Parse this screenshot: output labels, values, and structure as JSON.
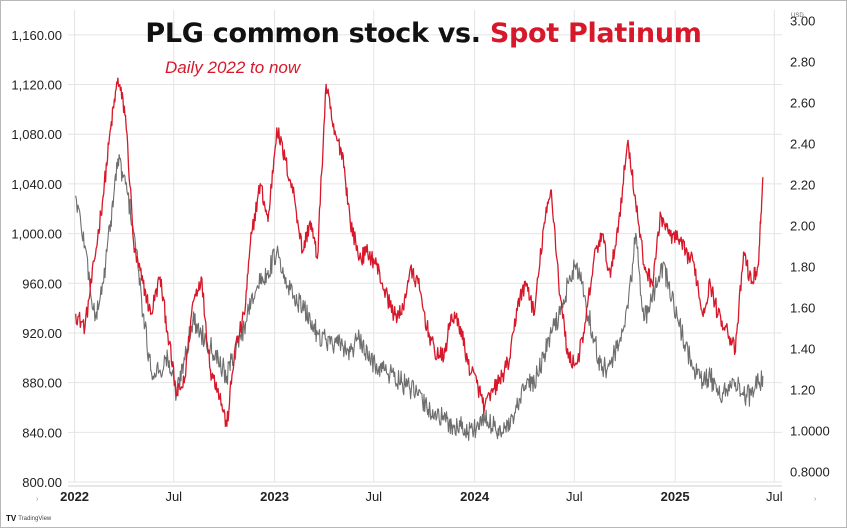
{
  "header": {
    "title_part1": "PLG common stock vs. ",
    "title_part2": "Spot Platinum",
    "subtitle": "Daily 2022 to now",
    "currency_label": "USD",
    "brand": "TradingView"
  },
  "colors": {
    "platinum": "#d7182a",
    "plg": "#6e6e6e",
    "title": "#111111",
    "grid": "#e4e4e4"
  },
  "chart_data": {
    "type": "line",
    "x_ticks": [
      {
        "label": "2022",
        "bold": true
      },
      {
        "label": "Jul",
        "bold": false
      },
      {
        "label": "2023",
        "bold": true
      },
      {
        "label": "Jul",
        "bold": false
      },
      {
        "label": "2024",
        "bold": true
      },
      {
        "label": "Jul",
        "bold": false
      },
      {
        "label": "2025",
        "bold": true
      },
      {
        "label": "Jul",
        "bold": false
      }
    ],
    "y_left": {
      "ylim": [
        800,
        1180
      ],
      "ticks": [
        "800.00",
        "840.00",
        "880.00",
        "920.00",
        "960.00",
        "1,000.00",
        "1,040.00",
        "1,080.00",
        "1,120.00",
        "1,160.00"
      ],
      "tick_values": [
        800,
        840,
        880,
        920,
        960,
        1000,
        1040,
        1080,
        1120,
        1160
      ]
    },
    "y_right": {
      "ylim": [
        0.75,
        3.05
      ],
      "ticks": [
        "0.8000",
        "1.0000",
        "1.20",
        "1.40",
        "1.60",
        "1.80",
        "2.00",
        "2.20",
        "2.40",
        "2.60",
        "2.80",
        "3.00"
      ],
      "tick_values": [
        0.8,
        1.0,
        1.2,
        1.4,
        1.6,
        1.8,
        2.0,
        2.2,
        2.4,
        2.6,
        2.8,
        3.0
      ]
    },
    "grid": true,
    "series": [
      {
        "axis": "left",
        "color": "#d7182a",
        "x": [
          "2022-01-03",
          "2022-01-20",
          "2022-02-07",
          "2022-02-22",
          "2022-03-08",
          "2022-03-21",
          "2022-04-04",
          "2022-04-20",
          "2022-05-06",
          "2022-05-20",
          "2022-06-06",
          "2022-06-20",
          "2022-07-06",
          "2022-07-20",
          "2022-08-05",
          "2022-08-20",
          "2022-09-06",
          "2022-09-20",
          "2022-10-06",
          "2022-10-20",
          "2022-11-07",
          "2022-11-20",
          "2022-12-06",
          "2022-12-20",
          "2023-01-05",
          "2023-01-20",
          "2023-02-06",
          "2023-02-21",
          "2023-03-07",
          "2023-03-20",
          "2023-04-05",
          "2023-04-20",
          "2023-05-05",
          "2023-05-19",
          "2023-06-05",
          "2023-06-20",
          "2023-07-06",
          "2023-07-20",
          "2023-08-07",
          "2023-08-21",
          "2023-09-05",
          "2023-09-20",
          "2023-10-06",
          "2023-10-20",
          "2023-11-06",
          "2023-11-20",
          "2023-12-06",
          "2023-12-20",
          "2024-01-05",
          "2024-01-19",
          "2024-02-06",
          "2024-02-20",
          "2024-03-06",
          "2024-03-20",
          "2024-04-05",
          "2024-04-19",
          "2024-05-06",
          "2024-05-20",
          "2024-06-05",
          "2024-06-20",
          "2024-07-05",
          "2024-07-19",
          "2024-08-06",
          "2024-08-20",
          "2024-09-05",
          "2024-09-20",
          "2024-10-07",
          "2024-10-21",
          "2024-11-05",
          "2024-11-20",
          "2024-12-06",
          "2024-12-20",
          "2025-01-06",
          "2025-01-20",
          "2025-02-05",
          "2025-02-20",
          "2025-03-06",
          "2025-03-20",
          "2025-04-04",
          "2025-04-21",
          "2025-05-06",
          "2025-05-20",
          "2025-06-02",
          "2025-06-10"
        ],
        "values": [
          935,
          925,
          980,
          1030,
          1085,
          1125,
          1095,
          985,
          960,
          935,
          965,
          920,
          870,
          880,
          945,
          965,
          890,
          875,
          845,
          905,
          935,
          1000,
          1040,
          1010,
          1085,
          1060,
          1030,
          985,
          1010,
          980,
          1120,
          1080,
          1065,
          1010,
          980,
          985,
          975,
          955,
          935,
          935,
          970,
          960,
          925,
          905,
          900,
          935,
          925,
          895,
          880,
          860,
          875,
          885,
          900,
          945,
          960,
          935,
          1005,
          1035,
          950,
          900,
          895,
          920,
          980,
          1000,
          965,
          1010,
          1075,
          1025,
          975,
          960,
          1015,
          1000,
          995,
          985,
          975,
          935,
          960,
          935,
          925,
          905,
          985,
          960,
          975,
          1045
        ]
      },
      {
        "axis": "left",
        "color": "#6e6e6e",
        "x": [
          "2022-01-03",
          "2022-01-20",
          "2022-02-07",
          "2022-02-22",
          "2022-03-08",
          "2022-03-21",
          "2022-04-04",
          "2022-04-20",
          "2022-05-06",
          "2022-05-20",
          "2022-06-06",
          "2022-06-20",
          "2022-07-06",
          "2022-07-20",
          "2022-08-05",
          "2022-08-20",
          "2022-09-06",
          "2022-09-20",
          "2022-10-06",
          "2022-10-20",
          "2022-11-07",
          "2022-11-20",
          "2022-12-06",
          "2022-12-20",
          "2023-01-05",
          "2023-01-20",
          "2023-02-06",
          "2023-02-21",
          "2023-03-07",
          "2023-03-20",
          "2023-04-05",
          "2023-04-20",
          "2023-05-05",
          "2023-05-19",
          "2023-06-05",
          "2023-06-20",
          "2023-07-06",
          "2023-07-20",
          "2023-08-07",
          "2023-08-21",
          "2023-09-05",
          "2023-09-20",
          "2023-10-06",
          "2023-10-20",
          "2023-11-06",
          "2023-11-20",
          "2023-12-06",
          "2023-12-20",
          "2024-01-05",
          "2024-01-19",
          "2024-02-06",
          "2024-02-20",
          "2024-03-06",
          "2024-03-20",
          "2024-04-05",
          "2024-04-19",
          "2024-05-06",
          "2024-05-20",
          "2024-06-05",
          "2024-06-20",
          "2024-07-05",
          "2024-07-19",
          "2024-08-06",
          "2024-08-20",
          "2024-09-05",
          "2024-09-20",
          "2024-10-07",
          "2024-10-21",
          "2024-11-05",
          "2024-11-20",
          "2024-12-06",
          "2024-12-20",
          "2025-01-06",
          "2025-01-20",
          "2025-02-05",
          "2025-02-20",
          "2025-03-06",
          "2025-03-20",
          "2025-04-04",
          "2025-04-21",
          "2025-05-06",
          "2025-05-20",
          "2025-06-02",
          "2025-06-10"
        ],
        "values": [
          1030,
          990,
          930,
          960,
          1010,
          1060,
          1040,
          1000,
          935,
          890,
          890,
          900,
          870,
          900,
          930,
          920,
          910,
          900,
          885,
          905,
          925,
          950,
          960,
          970,
          985,
          960,
          950,
          940,
          930,
          920,
          915,
          910,
          910,
          905,
          915,
          900,
          895,
          890,
          885,
          880,
          875,
          870,
          860,
          855,
          850,
          845,
          845,
          840,
          845,
          850,
          845,
          840,
          845,
          860,
          880,
          880,
          900,
          920,
          935,
          960,
          975,
          950,
          915,
          890,
          895,
          910,
          940,
          1000,
          930,
          945,
          975,
          960,
          930,
          910,
          890,
          880,
          885,
          870,
          875,
          880,
          870,
          870,
          880,
          885
        ]
      }
    ]
  }
}
